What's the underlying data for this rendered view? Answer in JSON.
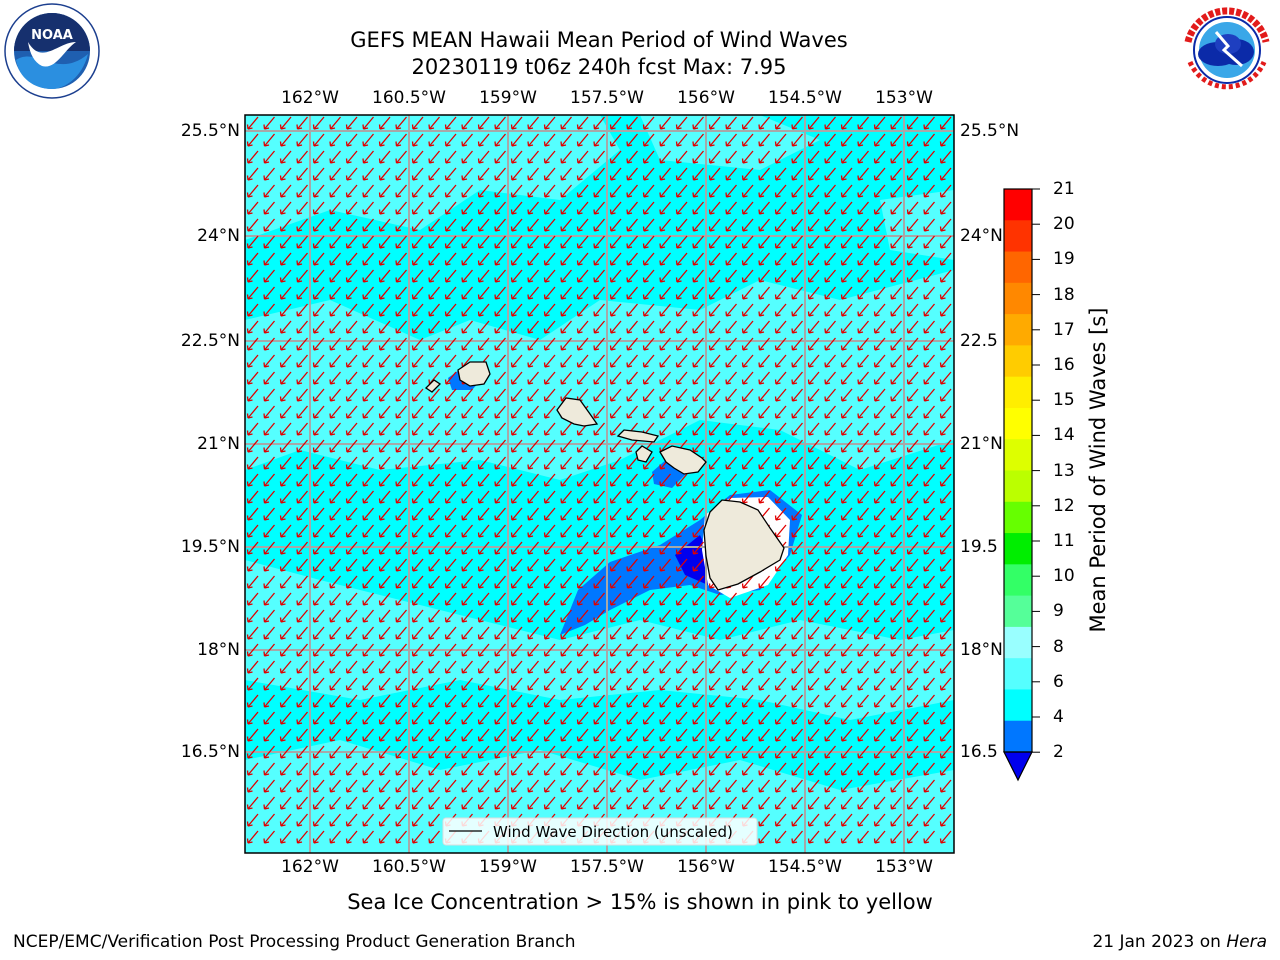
{
  "header": {
    "title_line1": "GEFS MEAN Hawaii Mean Period of Wind Waves",
    "title_line2": "20230119 t06z 240h fcst   Max: 7.95"
  },
  "logos": {
    "left": {
      "text": "NOAA",
      "ring_text": "NATIONAL OCEANIC AND ATMOSPHERIC ADMINISTRATION · U.S. DEPARTMENT OF COMMERCE",
      "icon": "noaa-logo-icon"
    },
    "right": {
      "ring_text": "NATIONAL WEATHER SERVICE",
      "icon": "nws-logo-icon"
    }
  },
  "map": {
    "lon_labels": [
      "162°W",
      "160.5°W",
      "159°W",
      "157.5°W",
      "156°W",
      "154.5°W",
      "153°W"
    ],
    "lat_labels_left": [
      "25.5°N",
      "24°N",
      "22.5°N",
      "21°N",
      "19.5°N",
      "18°N",
      "16.5°N"
    ],
    "lat_labels_right": [
      "25.5°N",
      "24°N",
      "22.5",
      "21°N",
      "19.5",
      "18°N",
      "16.5"
    ],
    "ocean_color": "#33ffff",
    "light_color": "#55ffff",
    "arrow_color": "#e00000",
    "arrow_direction": "towards southwest",
    "grid_color": "#a8a8a8",
    "land_color": "#eeeadb",
    "legend_text": "Wind Wave Direction (unscaled)"
  },
  "colorbar": {
    "label": "Mean Period of Wind Waves [s]",
    "ticks": [
      "21",
      "20",
      "19",
      "18",
      "17",
      "16",
      "15",
      "14",
      "13",
      "12",
      "11",
      "10",
      "9",
      "8",
      "6",
      "4",
      "2"
    ],
    "colors": [
      "#ff0000",
      "#ff3300",
      "#ff6600",
      "#ff8800",
      "#ffaa00",
      "#ffcc00",
      "#ffee00",
      "#ffff00",
      "#ddff00",
      "#bbff00",
      "#66ff00",
      "#00ee00",
      "#33ff66",
      "#55ff99",
      "#99ffff",
      "#55ffff",
      "#00ffff",
      "#0077ff"
    ],
    "under_color": "#0000ee"
  },
  "notes": {
    "ice": "Sea Ice Concentration > 15% is shown in pink to yellow"
  },
  "footer": {
    "left": "NCEP/EMC/Verification Post Processing Product Generation Branch",
    "date": "21 Jan 2023 on ",
    "host": "Hera"
  }
}
